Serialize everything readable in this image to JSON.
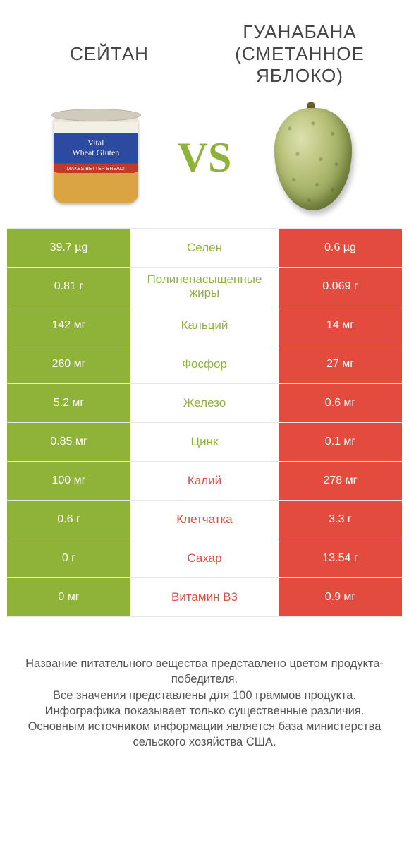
{
  "colors": {
    "green": "#8fb239",
    "red": "#e34b3f",
    "white": "#ffffff",
    "label_text": "#444444"
  },
  "header": {
    "left": "СЕЙТАН",
    "right": "ГУАНАБАНА (СМЕТАННОЕ ЯБЛОКО)",
    "vs": "VS"
  },
  "product_left": {
    "can_line1": "Vital",
    "can_line2": "Wheat Gluten",
    "can_band": "MAKES BETTER BREAD!"
  },
  "rows": [
    {
      "nutrient": "Селен",
      "left": "39.7 µg",
      "right": "0.6 µg",
      "winner": "left"
    },
    {
      "nutrient": "Полиненасыщенные жиры",
      "left": "0.81 г",
      "right": "0.069 г",
      "winner": "left"
    },
    {
      "nutrient": "Кальций",
      "left": "142 мг",
      "right": "14 мг",
      "winner": "left"
    },
    {
      "nutrient": "Фосфор",
      "left": "260 мг",
      "right": "27 мг",
      "winner": "left"
    },
    {
      "nutrient": "Железо",
      "left": "5.2 мг",
      "right": "0.6 мг",
      "winner": "left"
    },
    {
      "nutrient": "Цинк",
      "left": "0.85 мг",
      "right": "0.1 мг",
      "winner": "left"
    },
    {
      "nutrient": "Калий",
      "left": "100 мг",
      "right": "278 мг",
      "winner": "right"
    },
    {
      "nutrient": "Клетчатка",
      "left": "0.6 г",
      "right": "3.3 г",
      "winner": "right"
    },
    {
      "nutrient": "Сахар",
      "left": "0 г",
      "right": "13.54 г",
      "winner": "right"
    },
    {
      "nutrient": "Витамин B3",
      "left": "0 мг",
      "right": "0.9 мг",
      "winner": "right"
    }
  ],
  "footer": {
    "l1": "Название питательного вещества представлено цветом продукта-победителя.",
    "l2": "Все значения представлены для 100 граммов продукта.",
    "l3": "Инфографика показывает только существенные различия.",
    "l4": "Основным источником информации является база министерства сельского хозяйства США."
  }
}
